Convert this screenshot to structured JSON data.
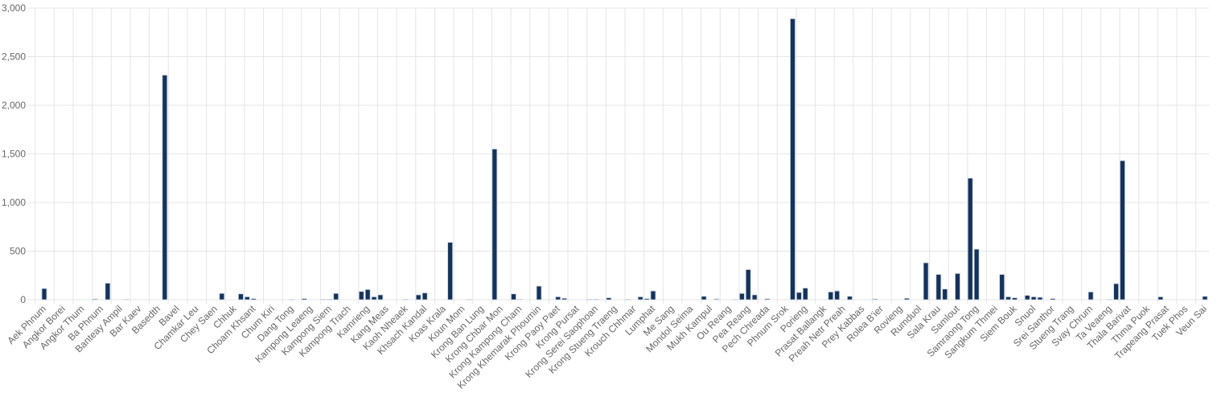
{
  "chart_data": {
    "type": "bar",
    "categories": [
      "Aek Phnum",
      null,
      null,
      "Angkor Borei",
      null,
      null,
      "Angkor Thum",
      null,
      null,
      "Ba Phnum",
      null,
      null,
      "Banteay Ampil",
      null,
      null,
      "Bar Kaev",
      null,
      null,
      "Basedth",
      null,
      null,
      "Bavel",
      null,
      null,
      "Chamkar Leu",
      null,
      null,
      "Chey Saen",
      null,
      null,
      "Chhuk",
      null,
      null,
      "Choam Khsant",
      null,
      null,
      "Chum Kiri",
      null,
      null,
      "Dang Tong",
      null,
      null,
      "Kampong Leaeng",
      null,
      null,
      "Kampong Siem",
      null,
      null,
      "Kampong Trach",
      null,
      null,
      "Kamrieng",
      null,
      null,
      "Kang Meas",
      null,
      null,
      "Kaoh Nheaek",
      null,
      null,
      "Khsach Kandal",
      null,
      null,
      "Koas Krala",
      null,
      null,
      "Koun Mom",
      null,
      null,
      "Krong Ban Lung",
      null,
      null,
      "Krong Chbar Mon",
      null,
      null,
      "Krong Kampong Cham",
      null,
      null,
      "Krong Khemarak Phoumin",
      null,
      null,
      "Krong Paoy Paet",
      null,
      null,
      "Krong Pursat",
      null,
      null,
      "Krong Serei Saophoan",
      null,
      null,
      "Krong Stueng Traeng",
      null,
      null,
      "Krouch Chhmar",
      null,
      null,
      "Lumphat",
      null,
      null,
      "Me Sang",
      null,
      null,
      "Mondol Seima",
      null,
      null,
      "Mukh Kampul",
      null,
      null,
      "Ou Reang",
      null,
      null,
      "Pea Reang",
      null,
      null,
      "Pech Chreada",
      null,
      null,
      "Phnum Srok",
      null,
      null,
      "Porieng",
      null,
      null,
      "Prasat Ballangk",
      null,
      null,
      "Preah Netr Preah",
      null,
      null,
      "Prey Kabbas",
      null,
      null,
      "Rolea B'ier",
      null,
      null,
      "Rovieng",
      null,
      null,
      "Rumduol",
      null,
      null,
      "Sala Krau",
      null,
      null,
      "Samlout",
      null,
      null,
      "Samraong Tong",
      null,
      null,
      "Sangkum Thmei",
      null,
      null,
      "Siem Bouk",
      null,
      null,
      "Snuol",
      null,
      null,
      "Srei Santhor",
      null,
      null,
      "Stueng Trang",
      null,
      null,
      "Svay Chrum",
      null,
      null,
      "Ta Veaeng",
      null,
      null,
      "Thala Barivat",
      null,
      null,
      "Thma Puok",
      null,
      null,
      "Trapeang Prasat",
      null,
      null,
      "Tuek Phos",
      null,
      null,
      "Veun Sai"
    ],
    "values": [
      115,
      0,
      0,
      0,
      0,
      0,
      0,
      0,
      8,
      0,
      170,
      0,
      0,
      3,
      0,
      0,
      0,
      0,
      0,
      2310,
      0,
      0,
      0,
      0,
      0,
      0,
      0,
      0,
      65,
      0,
      0,
      60,
      30,
      12,
      0,
      0,
      0,
      0,
      0,
      3,
      0,
      12,
      0,
      0,
      5,
      5,
      65,
      0,
      0,
      0,
      85,
      105,
      30,
      50,
      0,
      0,
      0,
      5,
      0,
      50,
      70,
      0,
      0,
      0,
      590,
      0,
      0,
      3,
      0,
      0,
      0,
      1550,
      0,
      0,
      60,
      5,
      0,
      0,
      140,
      0,
      0,
      30,
      15,
      0,
      0,
      0,
      5,
      5,
      0,
      20,
      0,
      0,
      5,
      0,
      30,
      12,
      90,
      0,
      0,
      0,
      0,
      0,
      0,
      0,
      35,
      0,
      8,
      0,
      0,
      3,
      65,
      310,
      50,
      0,
      10,
      0,
      0,
      0,
      2890,
      75,
      120,
      0,
      0,
      0,
      80,
      90,
      0,
      35,
      0,
      0,
      0,
      8,
      0,
      0,
      0,
      0,
      15,
      0,
      0,
      380,
      0,
      260,
      110,
      0,
      270,
      0,
      1250,
      520,
      0,
      0,
      0,
      260,
      30,
      20,
      0,
      45,
      30,
      25,
      0,
      12,
      0,
      0,
      0,
      0,
      0,
      80,
      0,
      0,
      3,
      165,
      1430,
      0,
      0,
      0,
      0,
      0,
      30,
      0,
      0,
      0,
      0,
      0,
      0,
      35
    ],
    "color": "#15325b",
    "ylim": [
      0,
      3000
    ],
    "yticks": [
      0,
      500,
      {
        "value": 1000,
        "label": "1,000"
      },
      {
        "value": 1500,
        "label": "1,500"
      },
      {
        "value": 2000,
        "label": "2,000"
      },
      {
        "value": 2500,
        "label": "2,500"
      },
      {
        "value": 3000,
        "label": "3,000"
      }
    ],
    "grid": true
  }
}
